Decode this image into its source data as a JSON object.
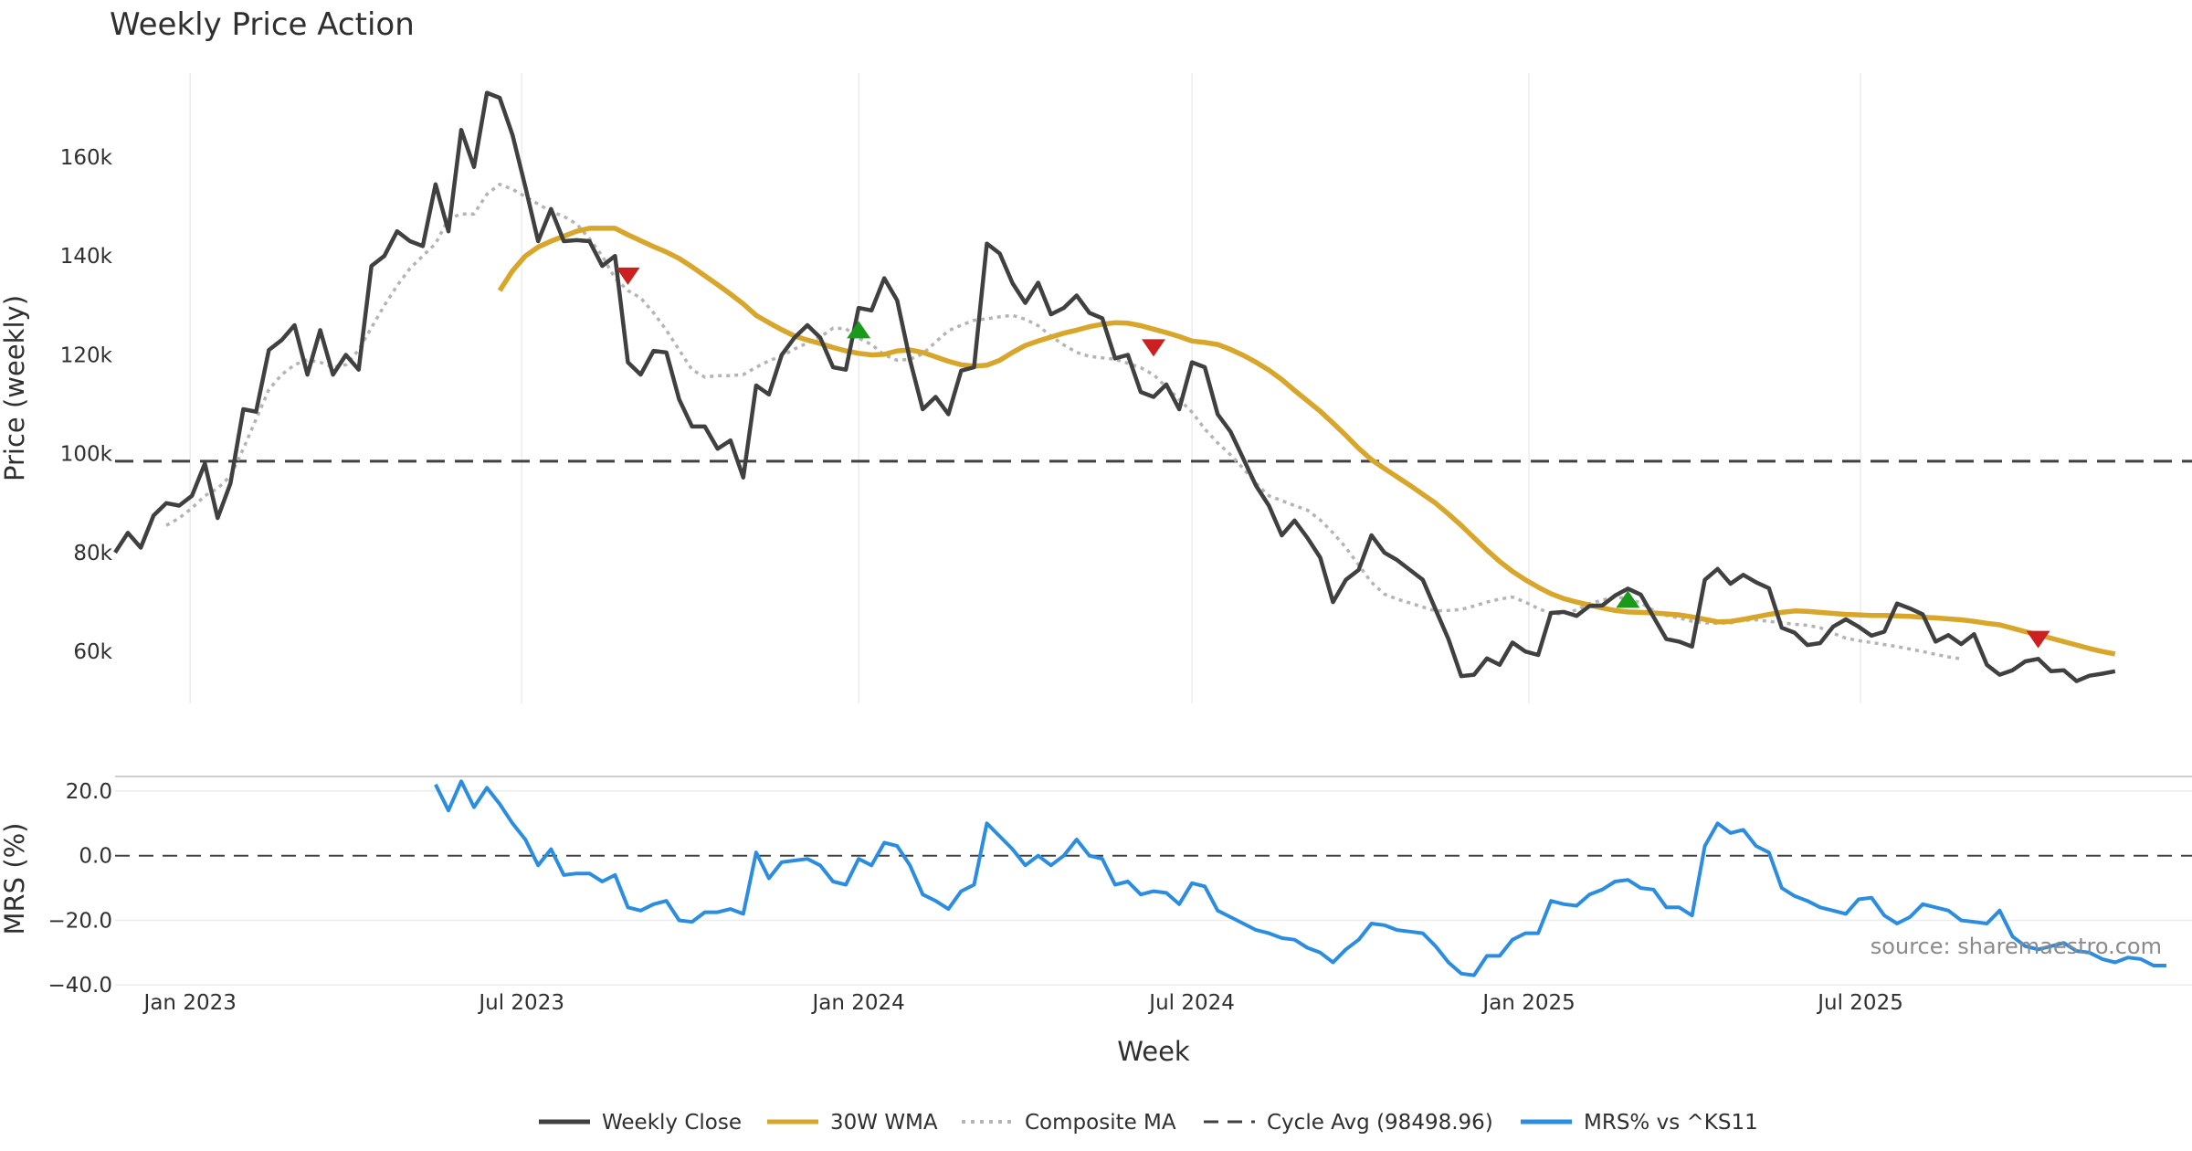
{
  "chart_data": {
    "type": "line",
    "title": "Weekly Price Action",
    "xlabel": "Week",
    "source": "source: sharemaestro.com",
    "x_range": [
      "2022-11-21",
      "2025-12-29"
    ],
    "x_ticks": [
      {
        "date": "2023-01-01",
        "label": "Jan 2023"
      },
      {
        "date": "2023-07-01",
        "label": "Jul 2023"
      },
      {
        "date": "2024-01-01",
        "label": "Jan 2024"
      },
      {
        "date": "2024-07-01",
        "label": "Jul 2024"
      },
      {
        "date": "2025-01-01",
        "label": "Jan 2025"
      },
      {
        "date": "2025-07-01",
        "label": "Jul 2025"
      }
    ],
    "price_panel": {
      "ylabel": "Price (weekly)",
      "ylim": [
        49500,
        177000
      ],
      "y_ticks": [
        {
          "value": 60000,
          "label": "60k"
        },
        {
          "value": 80000,
          "label": "80k"
        },
        {
          "value": 100000,
          "label": "100k"
        },
        {
          "value": 120000,
          "label": "120k"
        },
        {
          "value": 140000,
          "label": "140k"
        },
        {
          "value": 160000,
          "label": "160k"
        }
      ],
      "cycle_avg": 98498.96,
      "weekly_close": {
        "name": "Weekly Close",
        "color": "#404040",
        "start": "2022-11-21",
        "values": [
          80000,
          84000,
          81000,
          87500,
          90000,
          89500,
          91500,
          98000,
          87000,
          94000,
          109000,
          108500,
          121000,
          123000,
          126000,
          116000,
          125000,
          116000,
          120000,
          117000,
          138000,
          140000,
          145000,
          143000,
          142000,
          154500,
          145000,
          165500,
          158000,
          173000,
          172000,
          164500,
          154000,
          143000,
          149500,
          143000,
          143200,
          143000,
          138000,
          140000,
          118500,
          116000,
          120800,
          120500,
          111000,
          105500,
          105500,
          101000,
          102700,
          95200,
          113800,
          112000,
          120000,
          123500,
          126000,
          123500,
          117500,
          117000,
          129500,
          129000,
          135500,
          131000,
          119000,
          109000,
          111500,
          108000,
          116800,
          117500,
          142500,
          140500,
          134500,
          130500,
          134600,
          128200,
          129500,
          132000,
          128500,
          127400,
          119300,
          120000,
          112500,
          111500,
          114000,
          109000,
          118500,
          117500,
          108000,
          104500,
          99000,
          93500,
          89500,
          83500,
          86500,
          83000,
          79000,
          70000,
          74500,
          76500,
          83500,
          80000,
          78500,
          76500,
          74500,
          68500,
          62500,
          55000,
          55300,
          58600,
          57300,
          61800,
          60000,
          59300,
          67800,
          68000,
          67200,
          69200,
          69300,
          71300,
          72700,
          71500,
          67000,
          62500,
          62000,
          61000,
          74500,
          76700,
          73700,
          75500,
          74000,
          72800,
          64800,
          63800,
          61300,
          61700,
          65000,
          66500,
          65000,
          63200,
          64000,
          69700,
          68700,
          67500,
          62000,
          63300,
          61500,
          63500,
          57300,
          55300,
          56200,
          58000,
          58500,
          56000,
          56200,
          54000,
          55100,
          55500,
          56000
        ]
      },
      "wma_30w": {
        "name": "30W WMA",
        "color": "#d8a62a",
        "start": "2023-06-19",
        "values": [
          133000,
          137000,
          140000,
          141800,
          143000,
          144000,
          145000,
          145600,
          145600,
          145600,
          144300,
          143100,
          141900,
          140800,
          139500,
          137800,
          136000,
          134200,
          132300,
          130300,
          128000,
          126500,
          125100,
          123800,
          123000,
          122300,
          121500,
          120800,
          120300,
          120000,
          120100,
          120800,
          121000,
          120500,
          119600,
          118700,
          118000,
          117700,
          117900,
          118900,
          120500,
          121900,
          122800,
          123600,
          124400,
          125000,
          125700,
          126200,
          126500,
          126400,
          125900,
          125200,
          124500,
          123700,
          122800,
          122500,
          122100,
          121100,
          119900,
          118500,
          116900,
          115000,
          112800,
          110700,
          108600,
          106200,
          103700,
          101100,
          98800,
          97000,
          95300,
          93600,
          91800,
          90000,
          87800,
          85500,
          83000,
          80500,
          78200,
          76200,
          74500,
          73000,
          71700,
          70700,
          70000,
          69400,
          68800,
          68300,
          68000,
          67900,
          67800,
          67600,
          67400,
          67000,
          66500,
          66000,
          66100,
          66500,
          67000,
          67500,
          67900,
          68200,
          68100,
          67900,
          67700,
          67500,
          67400,
          67300,
          67300,
          67200,
          67100,
          66900,
          66800,
          66600,
          66400,
          66100,
          65700,
          65400,
          64700,
          64000,
          63400,
          62700,
          62000,
          61300,
          60600,
          60000,
          59500
        ]
      },
      "composite_ma": {
        "name": "Composite MA",
        "color": "#b4b4b4",
        "start": "2022-12-19",
        "values": [
          85500,
          87000,
          89000,
          91500,
          93000,
          95500,
          101000,
          107000,
          113000,
          116000,
          118000,
          119000,
          118500,
          117500,
          118000,
          121000,
          125500,
          130000,
          134000,
          137500,
          140000,
          142500,
          147500,
          148500,
          148500,
          152500,
          154500,
          153500,
          152000,
          150500,
          149000,
          148000,
          146500,
          143500,
          140000,
          135500,
          133000,
          131500,
          128500,
          125000,
          121000,
          117000,
          115500,
          115800,
          115800,
          116000,
          117500,
          118800,
          119800,
          121200,
          122400,
          123600,
          125400,
          125300,
          123400,
          122100,
          120000,
          118900,
          119100,
          120200,
          122600,
          124900,
          126000,
          127000,
          127300,
          127700,
          128000,
          127200,
          125900,
          123800,
          122000,
          120500,
          119700,
          119400,
          119100,
          118300,
          117400,
          116000,
          113500,
          111000,
          108400,
          105000,
          102200,
          99800,
          97000,
          94000,
          91500,
          90500,
          89500,
          88600,
          86600,
          84000,
          81000,
          77500,
          74000,
          71600,
          70600,
          69800,
          69000,
          68200,
          68300,
          68500,
          69200,
          70000,
          70600,
          71000,
          70000,
          68700,
          67700,
          67600,
          68400,
          69700,
          70400,
          71000,
          70700,
          69800,
          68300,
          67300,
          66800,
          66100,
          65800,
          65700,
          65800,
          66300,
          66400,
          66100,
          65800,
          65500,
          65300,
          64800,
          63700,
          62700,
          62200,
          61800,
          61400,
          61000,
          60500,
          60000,
          59400,
          58900,
          58500
        ]
      },
      "signals": [
        {
          "date": "2023-08-28",
          "value": 136000,
          "type": "sell",
          "color": "#cc1f1f"
        },
        {
          "date": "2024-01-01",
          "value": 125000,
          "type": "buy",
          "color": "#1a9a1a"
        },
        {
          "date": "2024-06-10",
          "value": 121500,
          "type": "sell",
          "color": "#cc1f1f"
        },
        {
          "date": "2025-02-24",
          "value": 70500,
          "type": "buy",
          "color": "#1a9a1a"
        },
        {
          "date": "2025-10-06",
          "value": 62500,
          "type": "sell",
          "color": "#cc1f1f"
        }
      ]
    },
    "mrs_panel": {
      "ylabel": "MRS (%)",
      "ylim": [
        -40.5,
        24.5
      ],
      "y_ticks": [
        {
          "value": 20,
          "label": "20.0"
        },
        {
          "value": 0,
          "label": "0.0"
        },
        {
          "value": -20,
          "label": "−20.0"
        },
        {
          "value": -40,
          "label": "−40.0"
        }
      ],
      "series": {
        "name": "MRS% vs ^KS11",
        "color": "#2b8de0",
        "start": "2023-05-15",
        "values": [
          22,
          14,
          23,
          15,
          21,
          16,
          10,
          5,
          -3,
          2,
          -6,
          -5.5,
          -5.5,
          -8,
          -6,
          -16,
          -17,
          -15,
          -14,
          -20,
          -20.5,
          -17.5,
          -17.5,
          -16.5,
          -18,
          1,
          -7,
          -2,
          -1.5,
          -1,
          -3,
          -8,
          -9,
          -1,
          -3,
          4,
          3,
          -3,
          -12,
          -14,
          -16.5,
          -11,
          -9,
          10,
          6,
          2,
          -3,
          0,
          -3,
          0,
          5,
          0,
          -1,
          -9,
          -8,
          -12,
          -11,
          -11.5,
          -15,
          -8.5,
          -9.5,
          -17,
          -19,
          -21,
          -23,
          -24,
          -25.5,
          -26,
          -28.5,
          -30,
          -33,
          -29,
          -26,
          -21,
          -21.5,
          -23,
          -23.5,
          -24,
          -28,
          -33,
          -36.5,
          -37,
          -31,
          -31,
          -26,
          -24,
          -24,
          -14,
          -15,
          -15.5,
          -12,
          -10.5,
          -8,
          -7.5,
          -10,
          -10.5,
          -16,
          -16,
          -18.5,
          3,
          10,
          7,
          8,
          3,
          1,
          -10,
          -12.5,
          -14,
          -16,
          -17,
          -18,
          -13.5,
          -13,
          -18.5,
          -21,
          -19,
          -15,
          -16,
          -17,
          -20,
          -20.5,
          -21,
          -17,
          -25,
          -28,
          -29,
          -28,
          -27,
          -29.5,
          -30,
          -32,
          -33,
          -31.5,
          -32,
          -34,
          -34
        ]
      }
    },
    "legend": [
      {
        "label": "Weekly Close",
        "color": "#404040",
        "style": "solid"
      },
      {
        "label": "30W WMA",
        "color": "#d8a62a",
        "style": "solid"
      },
      {
        "label": "Composite MA",
        "color": "#b4b4b4",
        "style": "dotted"
      },
      {
        "label": "Cycle Avg (98498.96)",
        "color": "#404040",
        "style": "dashed"
      },
      {
        "label": "MRS% vs ^KS11",
        "color": "#2b8de0",
        "style": "solid"
      }
    ]
  }
}
